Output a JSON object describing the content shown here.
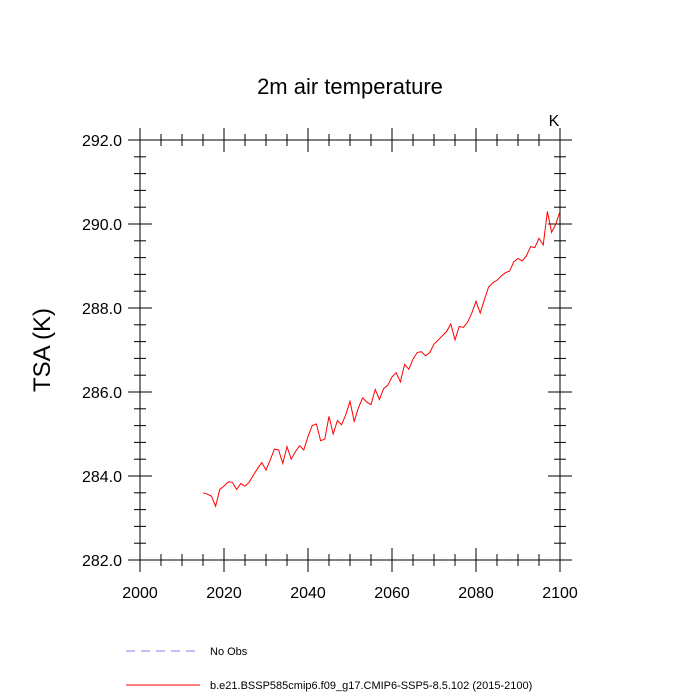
{
  "chart_data": {
    "type": "line",
    "title": "2m air temperature",
    "units_label": "K",
    "xlabel": "",
    "ylabel": "TSA  (K)",
    "xlim": [
      2000,
      2100
    ],
    "ylim": [
      282.0,
      292.0
    ],
    "x_ticks": [
      2000,
      2020,
      2040,
      2060,
      2080,
      2100
    ],
    "x_tick_labels": [
      "2000",
      "2020",
      "2040",
      "2060",
      "2080",
      "2100"
    ],
    "y_ticks": [
      282.0,
      284.0,
      286.0,
      288.0,
      290.0,
      292.0
    ],
    "y_tick_labels": [
      "282.0",
      "284.0",
      "286.0",
      "288.0",
      "290.0",
      "292.0"
    ],
    "series": [
      {
        "name": "b.e21.BSSP585cmip6.f09_g17.CMIP6-SSP5-8.5.102 (2015-2100)",
        "color": "#ff0000",
        "style": "solid",
        "x": [
          2015,
          2016,
          2017,
          2018,
          2019,
          2020,
          2021,
          2022,
          2023,
          2024,
          2025,
          2026,
          2027,
          2028,
          2029,
          2030,
          2031,
          2032,
          2033,
          2034,
          2035,
          2036,
          2037,
          2038,
          2039,
          2040,
          2041,
          2042,
          2043,
          2044,
          2045,
          2046,
          2047,
          2048,
          2049,
          2050,
          2051,
          2052,
          2053,
          2054,
          2055,
          2056,
          2057,
          2058,
          2059,
          2060,
          2061,
          2062,
          2063,
          2064,
          2065,
          2066,
          2067,
          2068,
          2069,
          2070,
          2071,
          2072,
          2073,
          2074,
          2075,
          2076,
          2077,
          2078,
          2079,
          2080,
          2081,
          2082,
          2083,
          2084,
          2085,
          2086,
          2087,
          2088,
          2089,
          2090,
          2091,
          2092,
          2093,
          2094,
          2095,
          2096,
          2097,
          2098,
          2099,
          2100
        ],
        "values": [
          283.6,
          283.57,
          283.52,
          283.28,
          283.68,
          283.76,
          283.86,
          283.85,
          283.68,
          283.82,
          283.76,
          283.85,
          284.02,
          284.18,
          284.32,
          284.14,
          284.38,
          284.64,
          284.62,
          284.3,
          284.7,
          284.4,
          284.58,
          284.72,
          284.62,
          284.94,
          285.2,
          285.24,
          284.84,
          284.88,
          285.42,
          285.0,
          285.32,
          285.22,
          285.46,
          285.78,
          285.3,
          285.62,
          285.86,
          285.76,
          285.7,
          286.06,
          285.82,
          286.08,
          286.16,
          286.36,
          286.46,
          286.24,
          286.66,
          286.54,
          286.78,
          286.94,
          286.96,
          286.86,
          286.94,
          287.14,
          287.24,
          287.34,
          287.44,
          287.62,
          287.24,
          287.56,
          287.54,
          287.66,
          287.88,
          288.16,
          287.88,
          288.2,
          288.5,
          288.6,
          288.66,
          288.76,
          288.84,
          288.88,
          289.1,
          289.18,
          289.12,
          289.24,
          289.46,
          289.44,
          289.66,
          289.5,
          290.3,
          289.8,
          290.0,
          290.3
        ]
      },
      {
        "name": "No Obs",
        "color": "#8080ff",
        "style": "dashed",
        "x": [],
        "values": []
      }
    ],
    "legend": [
      {
        "label": "No Obs",
        "color": "#8080ff",
        "style": "dashed"
      },
      {
        "label": "b.e21.BSSP585cmip6.f09_g17.CMIP6-SSP5-8.5.102 (2015-2100)",
        "color": "#ff0000",
        "style": "solid"
      }
    ]
  }
}
